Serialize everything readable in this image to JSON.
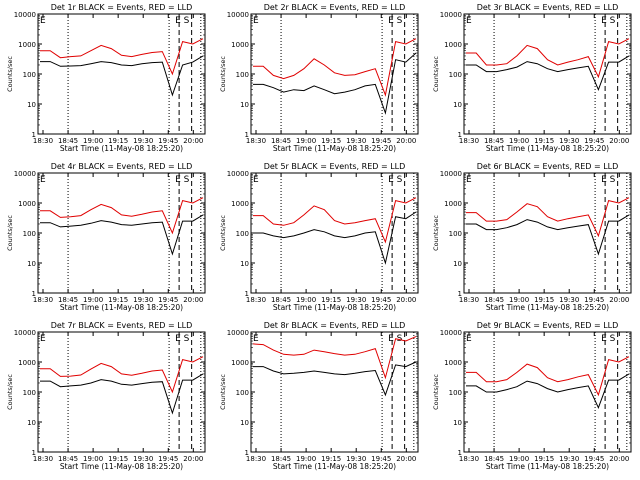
{
  "panel_title_suffix": "BLACK = Events, RED = LLD",
  "x_axis_label": "Start Time (11-May-08 18:25:20)",
  "y_axis_label": "Counts/sec",
  "x_tick_labels": [
    "18:30",
    "18:45",
    "19:00",
    "19:15",
    "19:30",
    "19:45",
    "20:00"
  ],
  "y_tick_labels": [
    "10000",
    "1000",
    "100",
    "10",
    "1"
  ],
  "markers": {
    "left": "E",
    "right": "E S"
  },
  "colors": {
    "events": "#000000",
    "lld": "#e00000"
  },
  "chart_data": [
    {
      "type": "line",
      "title": "Det 1r BLACK = Events, RED = LLD",
      "ylim": [
        1,
        10000
      ],
      "yscale": "log",
      "series": [
        {
          "name": "Events",
          "values": [
            260,
            260,
            180,
            185,
            190,
            220,
            260,
            240,
            200,
            190,
            220,
            240,
            250,
            20,
            200,
            250,
            400
          ]
        },
        {
          "name": "LLD",
          "values": [
            600,
            600,
            350,
            380,
            400,
            600,
            900,
            700,
            420,
            380,
            450,
            520,
            560,
            100,
            1200,
            1000,
            1500
          ]
        }
      ]
    },
    {
      "type": "line",
      "title": "Det 2r BLACK = Events, RED = LLD",
      "ylim": [
        1,
        10000
      ],
      "yscale": "log",
      "series": [
        {
          "name": "Events",
          "values": [
            45,
            45,
            35,
            25,
            30,
            28,
            40,
            30,
            22,
            25,
            30,
            40,
            45,
            5,
            300,
            250,
            500
          ]
        },
        {
          "name": "LLD",
          "values": [
            180,
            180,
            90,
            70,
            90,
            150,
            320,
            200,
            110,
            90,
            95,
            120,
            150,
            20,
            1200,
            1000,
            1500
          ]
        }
      ]
    },
    {
      "type": "line",
      "title": "Det 3r BLACK = Events, RED = LLD",
      "ylim": [
        1,
        10000
      ],
      "yscale": "log",
      "series": [
        {
          "name": "Events",
          "values": [
            200,
            200,
            120,
            120,
            140,
            170,
            260,
            220,
            150,
            120,
            140,
            160,
            180,
            30,
            250,
            250,
            400
          ]
        },
        {
          "name": "LLD",
          "values": [
            500,
            500,
            200,
            200,
            220,
            400,
            900,
            700,
            300,
            200,
            250,
            300,
            380,
            80,
            1200,
            1000,
            1500
          ]
        }
      ]
    },
    {
      "type": "line",
      "title": "Det 4r BLACK = Events, RED = LLD",
      "ylim": [
        1,
        10000
      ],
      "yscale": "log",
      "series": [
        {
          "name": "Events",
          "values": [
            220,
            220,
            160,
            170,
            180,
            210,
            260,
            230,
            190,
            180,
            200,
            220,
            230,
            20,
            250,
            250,
            400
          ]
        },
        {
          "name": "LLD",
          "values": [
            550,
            550,
            330,
            350,
            380,
            600,
            900,
            700,
            400,
            360,
            420,
            500,
            550,
            100,
            1200,
            1000,
            1500
          ]
        }
      ]
    },
    {
      "type": "line",
      "title": "Det 5r BLACK = Events, RED = LLD",
      "ylim": [
        1,
        10000
      ],
      "yscale": "log",
      "series": [
        {
          "name": "Events",
          "values": [
            100,
            100,
            80,
            70,
            80,
            100,
            130,
            110,
            80,
            70,
            80,
            100,
            110,
            10,
            350,
            300,
            500
          ]
        },
        {
          "name": "LLD",
          "values": [
            380,
            380,
            200,
            180,
            220,
            400,
            800,
            600,
            260,
            200,
            220,
            260,
            300,
            50,
            1200,
            1000,
            1500
          ]
        }
      ]
    },
    {
      "type": "line",
      "title": "Det 6r BLACK = Events, RED = LLD",
      "ylim": [
        1,
        10000
      ],
      "yscale": "log",
      "series": [
        {
          "name": "Events",
          "values": [
            200,
            200,
            130,
            130,
            150,
            190,
            280,
            230,
            160,
            130,
            150,
            170,
            190,
            20,
            250,
            250,
            400
          ]
        },
        {
          "name": "LLD",
          "values": [
            480,
            480,
            250,
            250,
            280,
            500,
            950,
            750,
            350,
            250,
            300,
            350,
            400,
            80,
            1200,
            1000,
            1500
          ]
        }
      ]
    },
    {
      "type": "line",
      "title": "Det 7r BLACK = Events, RED = LLD",
      "ylim": [
        1,
        10000
      ],
      "yscale": "log",
      "series": [
        {
          "name": "Events",
          "values": [
            230,
            230,
            150,
            160,
            170,
            200,
            260,
            230,
            180,
            170,
            190,
            210,
            220,
            20,
            250,
            250,
            400
          ]
        },
        {
          "name": "LLD",
          "values": [
            600,
            600,
            330,
            340,
            370,
            580,
            900,
            700,
            400,
            360,
            420,
            500,
            540,
            100,
            1200,
            1000,
            1500
          ]
        }
      ]
    },
    {
      "type": "line",
      "title": "Det 8r BLACK = Events, RED = LLD",
      "ylim": [
        1,
        10000
      ],
      "yscale": "log",
      "series": [
        {
          "name": "Events",
          "values": [
            700,
            700,
            500,
            400,
            420,
            450,
            500,
            450,
            400,
            380,
            420,
            480,
            520,
            80,
            800,
            700,
            1000
          ]
        },
        {
          "name": "LLD",
          "values": [
            4000,
            3800,
            2500,
            1800,
            1700,
            1800,
            2500,
            2200,
            1900,
            1700,
            1800,
            2200,
            2800,
            300,
            6000,
            5000,
            7000
          ]
        }
      ]
    },
    {
      "type": "line",
      "title": "Det 9r BLACK = Events, RED = LLD",
      "ylim": [
        1,
        10000
      ],
      "yscale": "log",
      "series": [
        {
          "name": "Events",
          "values": [
            160,
            160,
            100,
            100,
            120,
            150,
            230,
            190,
            130,
            100,
            120,
            140,
            160,
            30,
            250,
            250,
            400
          ]
        },
        {
          "name": "LLD",
          "values": [
            450,
            450,
            220,
            220,
            260,
            450,
            850,
            650,
            300,
            220,
            260,
            320,
            380,
            80,
            1200,
            1000,
            1500
          ]
        }
      ]
    }
  ]
}
